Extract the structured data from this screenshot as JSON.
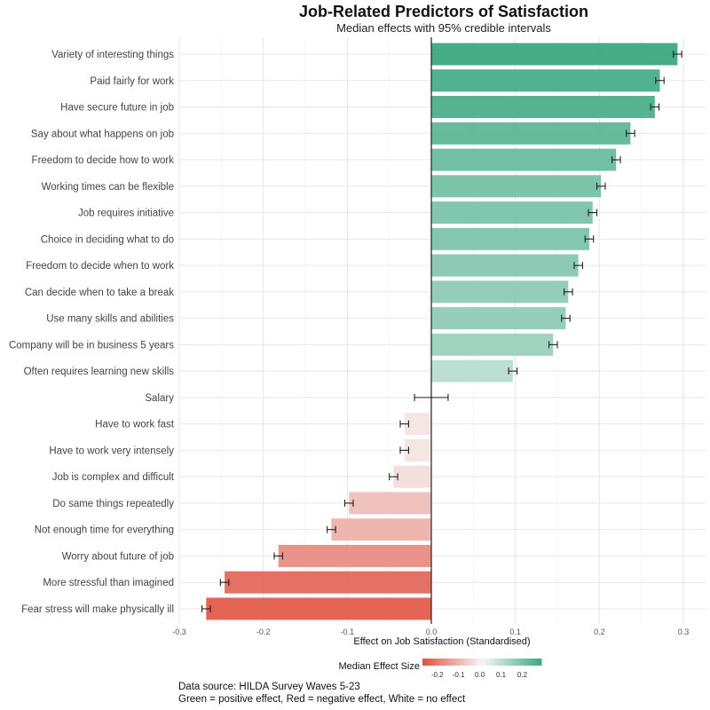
{
  "chart_data": {
    "type": "bar",
    "orientation": "horizontal",
    "title": "Job-Related Predictors of Satisfaction",
    "subtitle": "Median effects with 95% credible intervals",
    "xlabel": "Effect on Job Satisfaction (Standardised)",
    "ylabel": "",
    "xlim": [
      -0.3,
      0.33
    ],
    "xticks": [
      "-0.3",
      "-0.2",
      "-0.1",
      "0.0",
      "0.1",
      "0.2",
      "0.3"
    ],
    "xtick_values": [
      -0.3,
      -0.2,
      -0.1,
      0,
      0.1,
      0.2,
      0.3
    ],
    "grid": true,
    "categories": [
      "Variety of interesting things",
      "Paid fairly for work",
      "Have secure future in job",
      "Say about what happens on job",
      "Freedom to decide how to work",
      "Working times can be flexible",
      "Job requires initiative",
      "Choice in deciding what to do",
      "Freedom to decide when to work",
      "Can decide when to take a break",
      "Use many skills and abilities",
      "Company will be in business 5 years",
      "Often requires learning new skills",
      "Salary",
      "Have to work fast",
      "Have to work very intensely",
      "Job is complex and difficult",
      "Do same things repeatedly",
      "Not enough time for everything",
      "Worry about future of job",
      "More stressful than imagined",
      "Fear stress will make physically ill"
    ],
    "values": [
      0.293,
      0.272,
      0.266,
      0.237,
      0.22,
      0.202,
      0.192,
      0.188,
      0.175,
      0.163,
      0.16,
      0.145,
      0.097,
      -0.003,
      -0.032,
      -0.032,
      -0.045,
      -0.098,
      -0.119,
      -0.182,
      -0.246,
      -0.268
    ],
    "ci_low": [
      0.288,
      0.267,
      0.261,
      0.232,
      0.215,
      0.197,
      0.187,
      0.183,
      0.17,
      0.158,
      0.155,
      0.14,
      0.092,
      -0.02,
      -0.037,
      -0.037,
      -0.05,
      -0.103,
      -0.124,
      -0.187,
      -0.251,
      -0.273
    ],
    "ci_high": [
      0.298,
      0.277,
      0.271,
      0.242,
      0.225,
      0.207,
      0.197,
      0.193,
      0.18,
      0.168,
      0.165,
      0.15,
      0.102,
      0.02,
      -0.027,
      -0.027,
      -0.04,
      -0.093,
      -0.114,
      -0.177,
      -0.241,
      -0.263
    ],
    "legend": {
      "title": "Median Effect Size",
      "position": "bottom",
      "labels": [
        "-0.2",
        "-0.1",
        "0.0",
        "0.1",
        "0.2"
      ],
      "label_values": [
        -0.2,
        -0.1,
        0,
        0.1,
        0.2
      ]
    },
    "colors": {
      "negative": "#e04a3a",
      "neutral": "#f7f7f7",
      "positive": "#36a67f"
    }
  },
  "footer": {
    "line1": "Data source: HILDA Survey Waves 5-23",
    "line2": "Green = positive effect, Red = negative effect, White = no effect"
  }
}
